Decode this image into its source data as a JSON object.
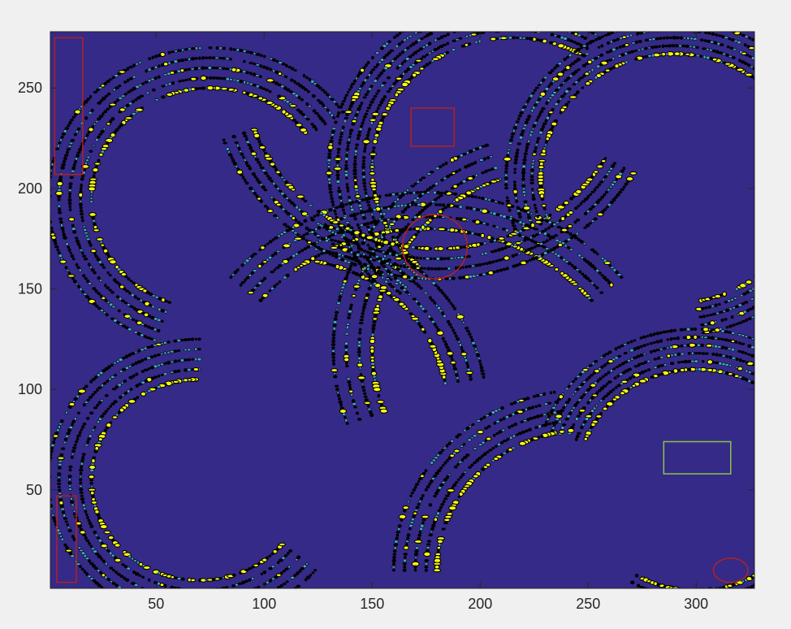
{
  "chart_data": {
    "type": "heatmap",
    "title": "",
    "xlabel": "",
    "ylabel": "",
    "xlim": [
      1,
      327
    ],
    "ylim": [
      1,
      278
    ],
    "x_ticks": [
      50,
      100,
      150,
      200,
      250,
      300
    ],
    "y_ticks": [
      50,
      100,
      150,
      200,
      250
    ],
    "colormap": {
      "background": "#352a87",
      "feature": "#f9fb0e",
      "feature_alt": "#3ea8c8",
      "outline": "#000000"
    },
    "arcs": [
      {
        "cx": 75,
        "cy": 195,
        "r": 55,
        "a0": 35,
        "a1": 250,
        "count": 5,
        "gap": 5
      },
      {
        "cx": 215,
        "cy": 210,
        "r": 65,
        "a0": 60,
        "a1": 230,
        "count": 6,
        "gap": 4
      },
      {
        "cx": 290,
        "cy": 205,
        "r": 62,
        "a0": -80,
        "a1": 200,
        "count": 5,
        "gap": 4
      },
      {
        "cx": 70,
        "cy": 55,
        "r": 50,
        "a0": 90,
        "a1": 320,
        "count": 5,
        "gap": 5
      },
      {
        "cx": 300,
        "cy": 55,
        "r": 55,
        "a0": -120,
        "a1": 160,
        "count": 6,
        "gap": 4
      },
      {
        "cx": 250,
        "cy": 10,
        "r": 70,
        "a0": 100,
        "a1": 180,
        "count": 5,
        "gap": 5
      },
      {
        "cx": 110,
        "cy": 90,
        "r": 75,
        "a0": 10,
        "a1": 80,
        "count": 4,
        "gap": 6
      },
      {
        "cx": 175,
        "cy": 80,
        "r": 100,
        "a0": 40,
        "a1": 140,
        "count": 4,
        "gap": 6
      },
      {
        "cx": 240,
        "cy": 120,
        "r": 90,
        "a0": 110,
        "a1": 200,
        "count": 4,
        "gap": 6
      },
      {
        "cx": 180,
        "cy": 260,
        "r": 90,
        "a0": 200,
        "a1": 330,
        "count": 4,
        "gap": 5
      }
    ],
    "annotations": [
      {
        "shape": "rect",
        "color": "#b22222",
        "x": [
          3,
          16
        ],
        "y": [
          207,
          275
        ]
      },
      {
        "shape": "rect",
        "color": "#b22222",
        "x": [
          4,
          13
        ],
        "y": [
          4,
          47
        ]
      },
      {
        "shape": "rect",
        "color": "#b22222",
        "x": [
          168,
          188
        ],
        "y": [
          221,
          240
        ]
      },
      {
        "shape": "rect",
        "color": "#8bc34a",
        "x": [
          285,
          316
        ],
        "y": [
          58,
          74
        ]
      },
      {
        "shape": "circle",
        "color": "#b22222",
        "cx": 179,
        "cy": 171,
        "rx": 15,
        "ry": 16
      },
      {
        "shape": "circle",
        "color": "#b22222",
        "cx": 316,
        "cy": 10,
        "rx": 8,
        "ry": 6
      }
    ]
  }
}
